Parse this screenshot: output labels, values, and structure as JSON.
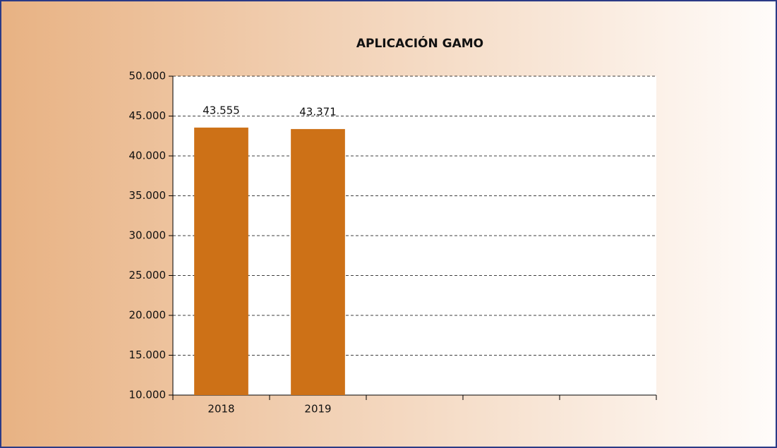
{
  "chart_data": {
    "type": "bar",
    "title": "APLICACIÓN GAMO",
    "categories": [
      "2018",
      "2019",
      null,
      null,
      null
    ],
    "values": [
      43555,
      43371,
      null,
      null,
      null
    ],
    "value_labels": [
      "43.555",
      "43.371",
      null,
      null,
      null
    ],
    "color": "#cd7117",
    "ylim": [
      10000,
      50000
    ],
    "yticks": [
      {
        "value": 10000,
        "label": "10.000"
      },
      {
        "value": 15000,
        "label": "15.000"
      },
      {
        "value": 20000,
        "label": "20.000"
      },
      {
        "value": 25000,
        "label": "25.000"
      },
      {
        "value": 30000,
        "label": "30.000"
      },
      {
        "value": 35000,
        "label": "35.000"
      },
      {
        "value": 40000,
        "label": "40.000"
      },
      {
        "value": 45000,
        "label": "45.000"
      },
      {
        "value": 50000,
        "label": "50.000"
      }
    ],
    "grid": true
  }
}
